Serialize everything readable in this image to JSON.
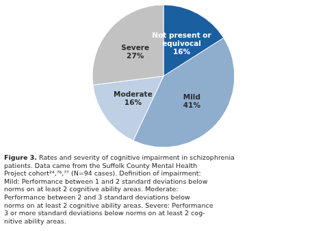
{
  "chart_data": {
    "type": "pie",
    "title": "Figure 3.",
    "subtitle": "Rates and severity of cognitive impairment in schizophrenia\npatients. Data came from the Suffolk County Mental Health\nProject cohort²⁴,⁷⁶,⁷⁷ (N=94 cases). Definition of impairment:\nMild: Performance between 1 and 2 standard deviations below\nnorms on at least 2 cognitive ability areas. Moderate:\nPerformance between 2 and 3 standard deviations below\nnorms on at least 2 cognitive ability areas. Severe: Performance\n3 or more standard deviations below norms on at least 2 cog-\nnitive ability areas.",
    "categories": [
      "Not present or\nequivocal",
      "Mild",
      "Moderate",
      "Severe"
    ],
    "values": [
      16,
      41,
      16,
      27
    ],
    "value_labels": [
      "16%",
      "41%",
      "16%",
      "27%"
    ],
    "colors": [
      "#1a5fa0",
      "#8faece",
      "#bfd0e5",
      "#c2c2c2"
    ],
    "data_labels": true
  }
}
